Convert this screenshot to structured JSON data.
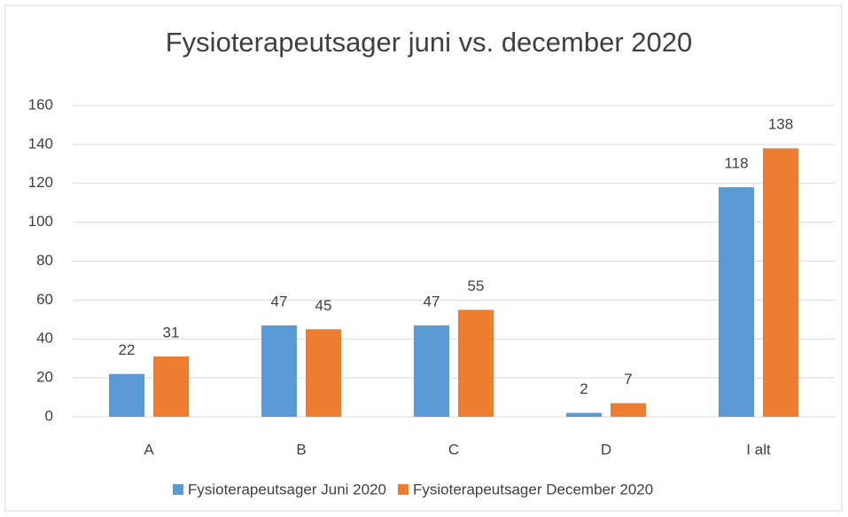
{
  "chart_data": {
    "type": "bar",
    "title": "Fysioterapeutsager juni vs. december 2020",
    "categories": [
      "A",
      "B",
      "C",
      "D",
      "I alt"
    ],
    "series": [
      {
        "name": "Fysioterapeutsager Juni 2020",
        "color": "#5b9bd5",
        "values": [
          22,
          47,
          47,
          2,
          118
        ]
      },
      {
        "name": "Fysioterapeutsager December 2020",
        "color": "#ed7d31",
        "values": [
          31,
          45,
          55,
          7,
          138
        ]
      }
    ],
    "ylim": [
      0,
      160
    ],
    "yticks": [
      0,
      20,
      40,
      60,
      80,
      100,
      120,
      140,
      160
    ],
    "grid": true,
    "legend": "bottom"
  }
}
